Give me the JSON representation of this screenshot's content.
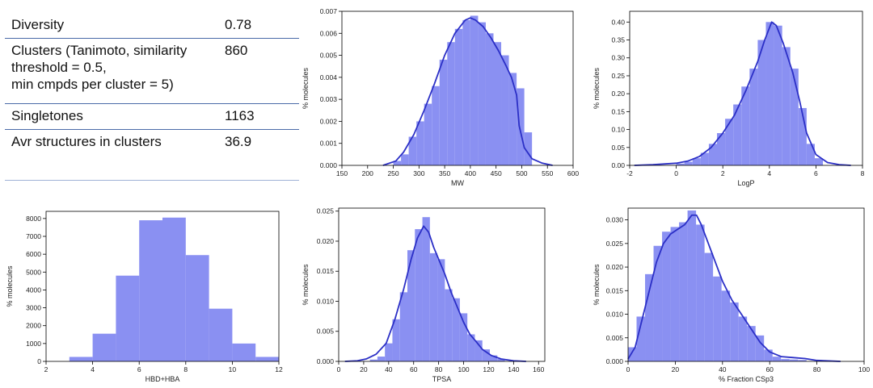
{
  "stats_table": {
    "rows": [
      {
        "label": "Diversity",
        "value": "0.78"
      },
      {
        "label": "Clusters (Tanimoto, similarity threshold = 0.5, min cmpds per cluster = 5)",
        "lines": [
          "Clusters (Tanimoto, similarity",
          "threshold = 0.5,",
          "min cmpds per cluster = 5)"
        ],
        "value": "860"
      },
      {
        "label": "Singletones",
        "value": "1163"
      },
      {
        "label": "Avr structures in clusters",
        "value": "36.9"
      }
    ]
  },
  "colors": {
    "bar": "#8a90f2",
    "line": "#2b2fc6",
    "axis": "#000000"
  },
  "chart_data": [
    {
      "id": "mw",
      "type": "bar",
      "xlabel": "MW",
      "ylabel": "% molecules",
      "xlim": [
        150,
        600
      ],
      "ylim": [
        0,
        0.007
      ],
      "xticks": [
        150,
        200,
        250,
        300,
        350,
        400,
        450,
        500,
        550,
        600
      ],
      "yticks": [
        0.0,
        0.001,
        0.002,
        0.003,
        0.004,
        0.005,
        0.006,
        0.007
      ],
      "ytick_labels": [
        "0.000",
        "0.001",
        "0.002",
        "0.003",
        "0.004",
        "0.005",
        "0.006",
        "0.007"
      ],
      "bin_edges": [
        250,
        265,
        280,
        295,
        310,
        325,
        340,
        355,
        370,
        385,
        400,
        415,
        430,
        445,
        460,
        475,
        490,
        505
      ],
      "values": [
        0.0002,
        0.0005,
        0.0013,
        0.002,
        0.0028,
        0.0036,
        0.0048,
        0.0056,
        0.0062,
        0.0066,
        0.0068,
        0.0065,
        0.006,
        0.0056,
        0.005,
        0.0042,
        0.0035,
        0.0015
      ],
      "kde": [
        [
          230,
          0.0
        ],
        [
          255,
          0.0002
        ],
        [
          270,
          0.0006
        ],
        [
          290,
          0.0014
        ],
        [
          310,
          0.0025
        ],
        [
          330,
          0.0037
        ],
        [
          350,
          0.005
        ],
        [
          370,
          0.006
        ],
        [
          390,
          0.0066
        ],
        [
          400,
          0.0067
        ],
        [
          410,
          0.0066
        ],
        [
          425,
          0.0063
        ],
        [
          440,
          0.0058
        ],
        [
          455,
          0.0052
        ],
        [
          470,
          0.0045
        ],
        [
          480,
          0.004
        ],
        [
          490,
          0.0032
        ],
        [
          495,
          0.0018
        ],
        [
          505,
          0.0008
        ],
        [
          520,
          0.0003
        ],
        [
          540,
          0.0001
        ],
        [
          560,
          0.0
        ]
      ]
    },
    {
      "id": "logp",
      "type": "bar",
      "xlabel": "LogP",
      "ylabel": "% molecules",
      "xlim": [
        -2,
        8
      ],
      "ylim": [
        0,
        0.43
      ],
      "xticks": [
        -2,
        0,
        2,
        4,
        6,
        8
      ],
      "yticks": [
        0.0,
        0.05,
        0.1,
        0.15,
        0.2,
        0.25,
        0.3,
        0.35,
        0.4
      ],
      "ytick_labels": [
        "0.00",
        "0.05",
        "0.10",
        "0.15",
        "0.20",
        "0.25",
        "0.30",
        "0.35",
        "0.40"
      ],
      "bin_edges": [
        0.0,
        0.35,
        0.7,
        1.05,
        1.4,
        1.75,
        2.1,
        2.45,
        2.8,
        3.15,
        3.5,
        3.85,
        4.2,
        4.55,
        4.9,
        5.25,
        5.6,
        5.95
      ],
      "values": [
        0.005,
        0.01,
        0.02,
        0.035,
        0.06,
        0.09,
        0.13,
        0.17,
        0.22,
        0.27,
        0.35,
        0.4,
        0.39,
        0.33,
        0.27,
        0.16,
        0.06,
        0.02
      ],
      "kde": [
        [
          -1.8,
          0.0
        ],
        [
          -1.0,
          0.002
        ],
        [
          0.0,
          0.006
        ],
        [
          0.5,
          0.012
        ],
        [
          1.0,
          0.025
        ],
        [
          1.5,
          0.05
        ],
        [
          2.0,
          0.09
        ],
        [
          2.5,
          0.14
        ],
        [
          3.0,
          0.21
        ],
        [
          3.5,
          0.29
        ],
        [
          3.8,
          0.35
        ],
        [
          4.1,
          0.4
        ],
        [
          4.3,
          0.39
        ],
        [
          4.6,
          0.34
        ],
        [
          5.0,
          0.26
        ],
        [
          5.3,
          0.18
        ],
        [
          5.6,
          0.09
        ],
        [
          6.0,
          0.03
        ],
        [
          6.5,
          0.008
        ],
        [
          7.0,
          0.002
        ],
        [
          7.5,
          0.0
        ]
      ]
    },
    {
      "id": "hbd_hba",
      "type": "bar",
      "xlabel": "HBD+HBA",
      "ylabel": "% molecules",
      "xlim": [
        2,
        12
      ],
      "ylim": [
        0,
        8400
      ],
      "xticks": [
        2,
        4,
        6,
        8,
        10,
        12
      ],
      "yticks": [
        0,
        1000,
        2000,
        3000,
        4000,
        5000,
        6000,
        7000,
        8000
      ],
      "ytick_labels": [
        "0",
        "1000",
        "2000",
        "3000",
        "4000",
        "5000",
        "6000",
        "7000",
        "8000"
      ],
      "bin_edges": [
        3,
        4,
        5,
        6,
        7,
        8,
        9,
        10,
        11,
        12
      ],
      "values": [
        250,
        1550,
        4800,
        7900,
        8050,
        5950,
        2950,
        1000,
        250
      ]
    },
    {
      "id": "tpsa",
      "type": "bar",
      "xlabel": "TPSA",
      "ylabel": "% molecules",
      "xlim": [
        0,
        165
      ],
      "ylim": [
        0,
        0.0255
      ],
      "xticks": [
        0,
        20,
        40,
        60,
        80,
        100,
        120,
        140,
        160
      ],
      "yticks": [
        0.0,
        0.005,
        0.01,
        0.015,
        0.02,
        0.025
      ],
      "ytick_labels": [
        "0.000",
        "0.005",
        "0.010",
        "0.015",
        "0.020",
        "0.025"
      ],
      "bin_edges": [
        25,
        31,
        37,
        43,
        49,
        55,
        61,
        67,
        73,
        79,
        85,
        91,
        97,
        103,
        109,
        115,
        121,
        127
      ],
      "values": [
        0.0003,
        0.0008,
        0.003,
        0.007,
        0.0115,
        0.0185,
        0.022,
        0.024,
        0.018,
        0.017,
        0.012,
        0.0105,
        0.008,
        0.0045,
        0.0035,
        0.002,
        0.001,
        0.0004
      ],
      "kde": [
        [
          5,
          0.0
        ],
        [
          15,
          0.0001
        ],
        [
          22,
          0.0004
        ],
        [
          30,
          0.0012
        ],
        [
          38,
          0.003
        ],
        [
          45,
          0.007
        ],
        [
          52,
          0.012
        ],
        [
          58,
          0.017
        ],
        [
          63,
          0.0205
        ],
        [
          68,
          0.0225
        ],
        [
          72,
          0.0215
        ],
        [
          76,
          0.019
        ],
        [
          80,
          0.017
        ],
        [
          85,
          0.0145
        ],
        [
          90,
          0.0115
        ],
        [
          95,
          0.009
        ],
        [
          100,
          0.0065
        ],
        [
          105,
          0.0045
        ],
        [
          110,
          0.0033
        ],
        [
          115,
          0.002
        ],
        [
          122,
          0.001
        ],
        [
          130,
          0.0004
        ],
        [
          140,
          0.0001
        ],
        [
          150,
          0.0
        ]
      ]
    },
    {
      "id": "fsp3",
      "type": "bar",
      "xlabel": "% Fraction CSp3",
      "ylabel": "% molecules",
      "xlim": [
        0,
        100
      ],
      "ylim": [
        0,
        0.0325
      ],
      "xticks": [
        0,
        20,
        40,
        60,
        80,
        100
      ],
      "yticks": [
        0.0,
        0.005,
        0.01,
        0.015,
        0.02,
        0.025,
        0.03
      ],
      "ytick_labels": [
        "0.000",
        "0.005",
        "0.010",
        "0.015",
        "0.020",
        "0.025",
        "0.030"
      ],
      "bin_edges": [
        0,
        3.6,
        7.2,
        10.8,
        14.4,
        18,
        21.6,
        25.2,
        28.8,
        32.4,
        36,
        39.6,
        43.2,
        46.8,
        50.4,
        54,
        57.6,
        61.2,
        64.8,
        68.4,
        72
      ],
      "values": [
        0.003,
        0.0095,
        0.0185,
        0.0245,
        0.0275,
        0.0285,
        0.0295,
        0.032,
        0.029,
        0.023,
        0.018,
        0.015,
        0.0125,
        0.0095,
        0.0075,
        0.0055,
        0.0025,
        0.001,
        0.0005,
        0.0004,
        0.0003
      ],
      "kde": [
        [
          0,
          0.0005
        ],
        [
          3,
          0.003
        ],
        [
          6,
          0.009
        ],
        [
          9,
          0.015
        ],
        [
          12,
          0.021
        ],
        [
          15,
          0.025
        ],
        [
          18,
          0.027
        ],
        [
          21,
          0.028
        ],
        [
          24,
          0.029
        ],
        [
          27,
          0.031
        ],
        [
          29,
          0.031
        ],
        [
          31,
          0.029
        ],
        [
          34,
          0.025
        ],
        [
          37,
          0.021
        ],
        [
          40,
          0.017
        ],
        [
          44,
          0.013
        ],
        [
          48,
          0.01
        ],
        [
          52,
          0.007
        ],
        [
          56,
          0.004
        ],
        [
          60,
          0.002
        ],
        [
          65,
          0.001
        ],
        [
          70,
          0.0008
        ],
        [
          75,
          0.0006
        ],
        [
          80,
          0.0002
        ],
        [
          90,
          0.0
        ]
      ]
    }
  ]
}
